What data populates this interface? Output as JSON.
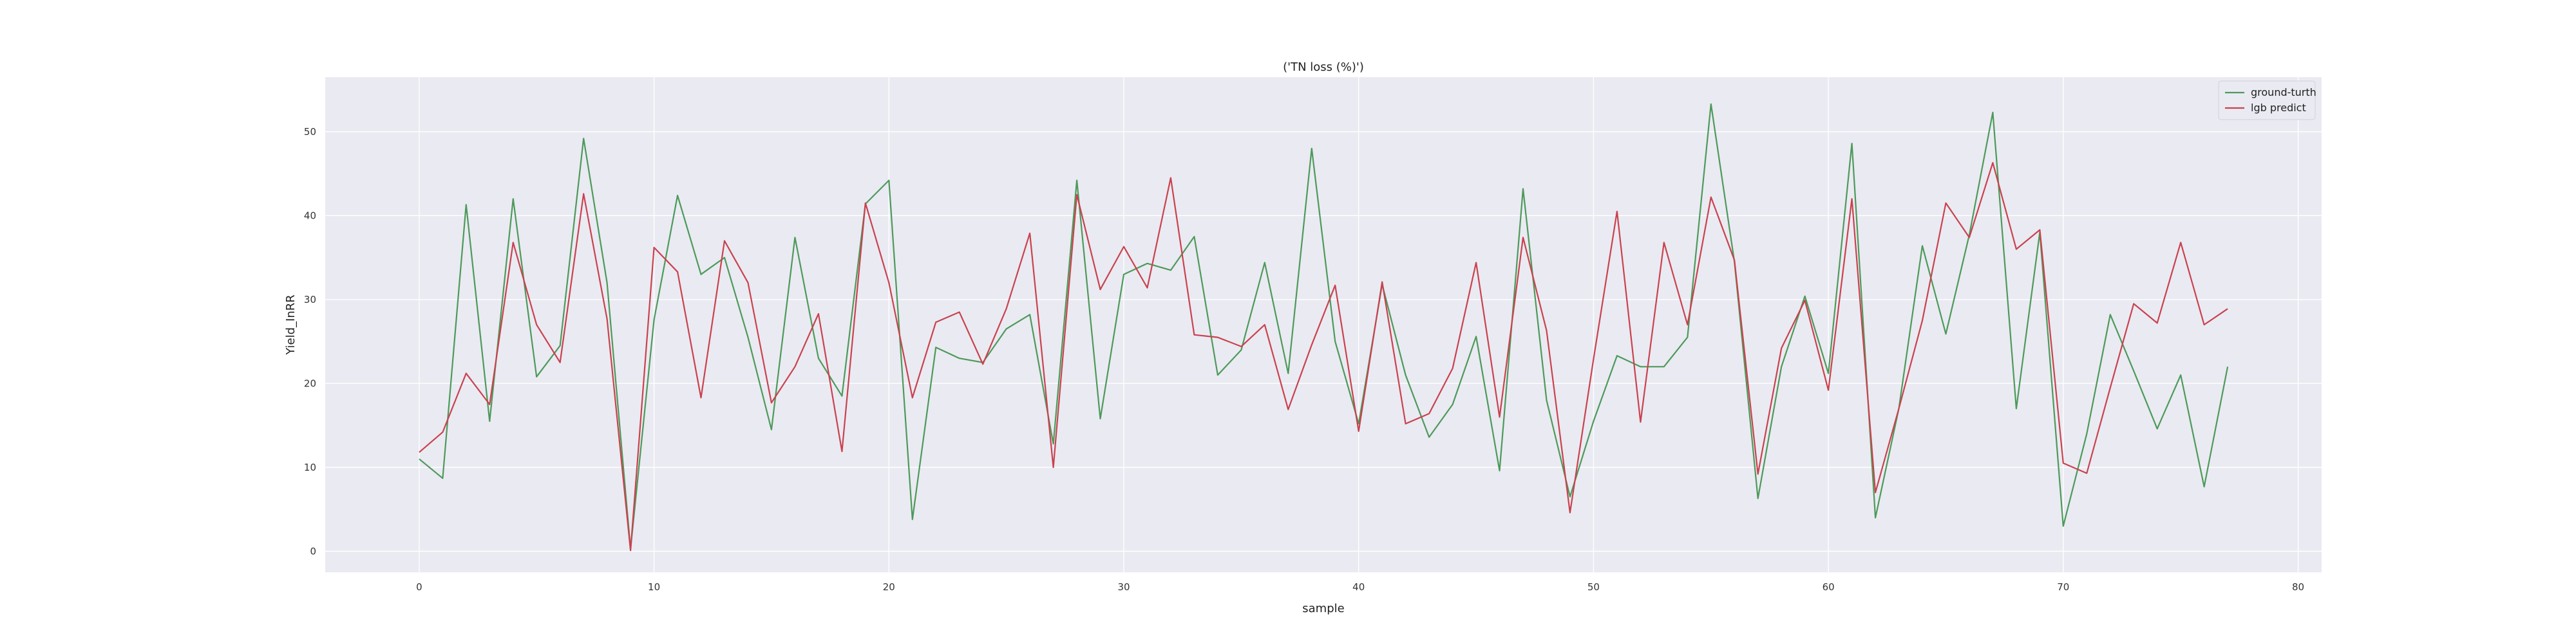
{
  "chart_data": {
    "type": "line",
    "title": "('TN loss (%)')",
    "xlabel": "sample",
    "ylabel": "Yield_InRR",
    "xlim": [
      -4,
      81
    ],
    "ylim": [
      -2.5,
      56.5
    ],
    "xticks": [
      0,
      10,
      20,
      30,
      40,
      50,
      60,
      70,
      80
    ],
    "yticks": [
      0,
      10,
      20,
      30,
      40,
      50
    ],
    "grid": true,
    "legend_position": "top-right",
    "x": [
      0,
      1,
      2,
      3,
      4,
      5,
      6,
      7,
      8,
      9,
      10,
      11,
      12,
      13,
      14,
      15,
      16,
      17,
      18,
      19,
      20,
      21,
      22,
      23,
      24,
      25,
      26,
      27,
      28,
      29,
      30,
      31,
      32,
      33,
      34,
      35,
      36,
      37,
      38,
      39,
      40,
      41,
      42,
      43,
      44,
      45,
      46,
      47,
      48,
      49,
      50,
      51,
      52,
      53,
      54,
      55,
      56,
      57,
      58,
      59,
      60,
      61,
      62,
      63,
      64,
      65,
      66,
      67,
      68,
      69,
      70,
      71,
      72,
      73,
      74,
      75,
      76,
      77
    ],
    "series": [
      {
        "name": "ground-turth",
        "color": "#4c9a5a",
        "values": [
          11.0,
          8.7,
          41.3,
          15.5,
          42.0,
          20.8,
          24.5,
          49.2,
          32.0,
          0.3,
          27.6,
          42.4,
          33.0,
          35.0,
          25.5,
          14.5,
          37.4,
          23.0,
          18.5,
          41.4,
          44.2,
          3.8,
          24.3,
          23.0,
          22.5,
          26.5,
          28.2,
          12.8,
          44.2,
          15.8,
          33.0,
          34.3,
          33.5,
          37.5,
          21.0,
          24.0,
          34.4,
          21.2,
          48.0,
          25.0,
          15.2,
          31.8,
          21.0,
          13.6,
          17.5,
          25.6,
          9.6,
          43.2,
          18.0,
          6.5,
          15.5,
          23.3,
          22.0,
          22.0,
          25.5,
          53.3,
          34.5,
          6.3,
          22.0,
          30.4,
          21.2,
          48.6,
          4.0,
          17.0,
          36.4,
          25.9,
          37.7,
          52.3,
          17.0,
          38.0,
          3.0,
          14.0,
          28.2,
          21.5,
          14.6,
          21.0,
          7.7,
          22.0
        ]
      },
      {
        "name": "lgb predict",
        "color": "#c9424e",
        "values": [
          11.8,
          14.2,
          21.2,
          17.5,
          36.8,
          27.0,
          22.5,
          42.6,
          27.7,
          0.1,
          36.2,
          33.3,
          18.3,
          37.0,
          32.0,
          17.7,
          22.0,
          28.3,
          11.9,
          41.5,
          32.0,
          18.3,
          27.3,
          28.5,
          22.3,
          28.9,
          37.9,
          10.0,
          42.5,
          31.2,
          36.3,
          31.4,
          44.5,
          25.8,
          25.5,
          24.4,
          27.0,
          16.9,
          24.6,
          31.7,
          14.3,
          32.1,
          15.2,
          16.4,
          21.8,
          34.4,
          16.0,
          37.4,
          26.3,
          4.6,
          22.9,
          40.5,
          15.4,
          36.8,
          27.0,
          42.2,
          34.7,
          9.2,
          24.2,
          29.9,
          19.2,
          42.0,
          7.0,
          17.0,
          27.5,
          41.5,
          37.4,
          46.3,
          36.0,
          38.3,
          10.5,
          9.3,
          19.5,
          29.5,
          27.2,
          36.8,
          27.0,
          28.9
        ]
      }
    ]
  }
}
